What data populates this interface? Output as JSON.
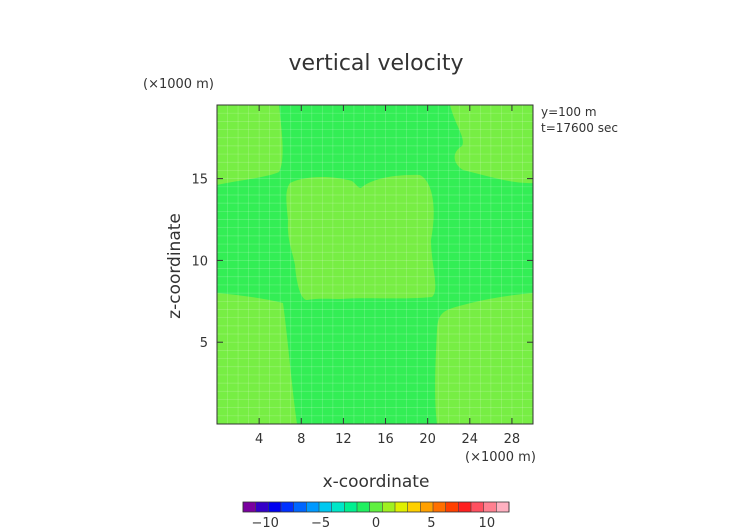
{
  "chart_data": {
    "type": "heatmap",
    "title": "vertical velocity",
    "xlabel": "x-coordinate",
    "ylabel": "z-coordinate",
    "x_unit": "(×1000 m)",
    "y_unit": "(×1000 m)",
    "xlim": [
      0,
      30
    ],
    "ylim": [
      0,
      19.5
    ],
    "x_ticks": [
      4,
      8,
      12,
      16,
      20,
      24,
      28
    ],
    "y_ticks": [
      5,
      10,
      15
    ],
    "annotations": [
      "y=100 m",
      "t=17600 sec"
    ],
    "grid": true,
    "regions": [
      {
        "value_range": [
          0,
          1
        ],
        "color": "#33ee55",
        "description": "background field"
      },
      {
        "value_range": [
          1,
          2
        ],
        "color": "#77ee44",
        "description": "left upper lobe"
      },
      {
        "value_range": [
          1,
          2
        ],
        "color": "#77ee44",
        "description": "right upper lobe"
      },
      {
        "value_range": [
          1,
          2
        ],
        "color": "#77ee44",
        "description": "center block"
      },
      {
        "value_range": [
          1,
          2
        ],
        "color": "#77ee44",
        "description": "left lower lobe"
      },
      {
        "value_range": [
          1,
          2
        ],
        "color": "#77ee44",
        "description": "right lower lobe"
      }
    ],
    "colorbar": {
      "min": -12,
      "max": 12,
      "ticks": [
        -10,
        -5,
        0,
        5,
        10
      ],
      "colors": [
        "#7a00a0",
        "#3500c8",
        "#0000f0",
        "#0030ff",
        "#0066ff",
        "#0099ff",
        "#00c8f0",
        "#00e6c8",
        "#00f090",
        "#20f060",
        "#60f040",
        "#a0f020",
        "#e0f000",
        "#ffd000",
        "#ffa000",
        "#ff7000",
        "#ff4000",
        "#ff2020",
        "#ff5060",
        "#ff8090",
        "#ffb0c0"
      ]
    }
  }
}
